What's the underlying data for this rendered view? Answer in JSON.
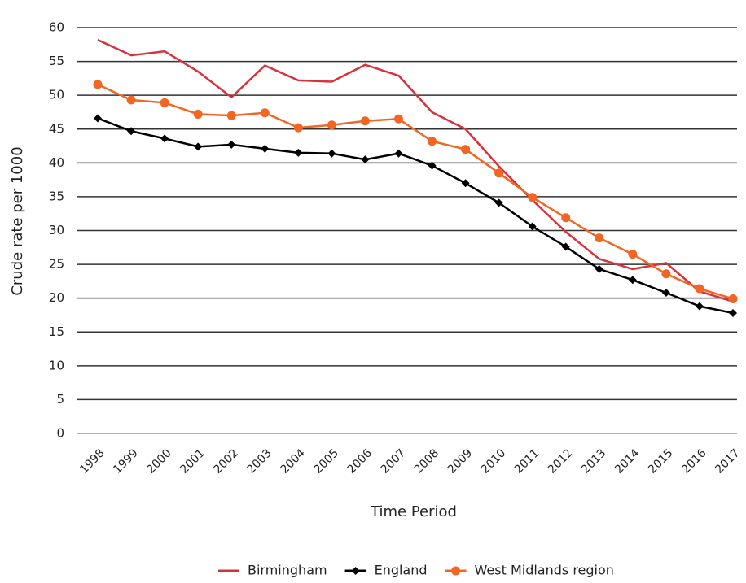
{
  "chart_data": {
    "type": "line",
    "y_label": "Crude rate per 1000",
    "x_label": "Time Period",
    "categories": [
      "1998",
      "1999",
      "2000",
      "2001",
      "2002",
      "2003",
      "2004",
      "2005",
      "2006",
      "2007",
      "2008",
      "2009",
      "2010",
      "2011",
      "2012",
      "2013",
      "2014",
      "2015",
      "2016",
      "2017"
    ],
    "series": [
      {
        "name": "Birmingham",
        "color": "#d9303a",
        "marker": false,
        "values": [
          58.2,
          55.9,
          56.5,
          53.5,
          49.7,
          54.4,
          52.2,
          52.0,
          54.5,
          52.9,
          47.5,
          45.0,
          39.5,
          34.5,
          29.8,
          25.8,
          24.3,
          25.2,
          21.0,
          19.5
        ]
      },
      {
        "name": "England",
        "color": "#000000",
        "marker": "diamond",
        "values": [
          46.6,
          44.7,
          43.6,
          42.4,
          42.7,
          42.1,
          41.5,
          41.4,
          40.5,
          41.4,
          39.6,
          37.0,
          34.1,
          30.6,
          27.6,
          24.3,
          22.7,
          20.8,
          18.8,
          17.8
        ]
      },
      {
        "name": "West Midlands region",
        "color": "#f26522",
        "marker": "circle",
        "values": [
          51.6,
          49.3,
          48.9,
          47.2,
          47.0,
          47.4,
          45.2,
          45.6,
          46.2,
          46.5,
          43.2,
          42.0,
          38.5,
          34.9,
          31.9,
          28.9,
          26.5,
          23.6,
          21.4,
          19.9
        ]
      }
    ],
    "ylim": [
      0,
      60
    ],
    "yticks": [
      0,
      5,
      10,
      15,
      20,
      25,
      30,
      35,
      40,
      45,
      50,
      55,
      60
    ],
    "grid": true,
    "legend": "bottom"
  }
}
